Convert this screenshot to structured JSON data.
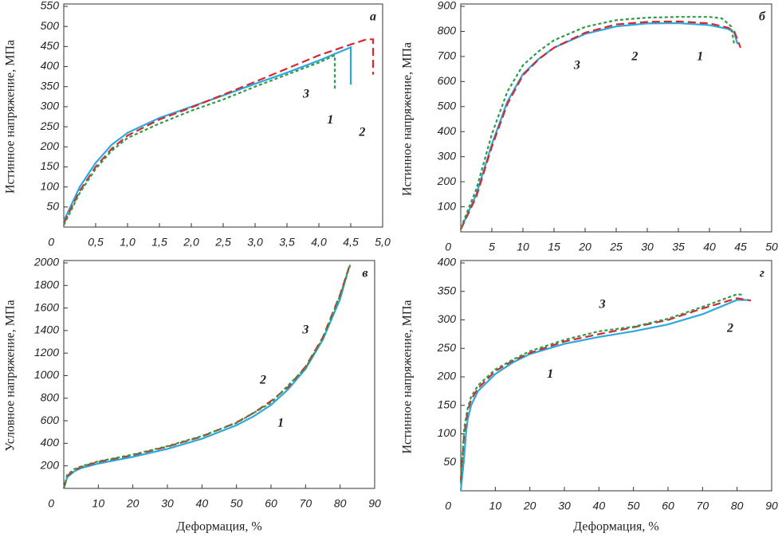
{
  "chart_data": [
    {
      "type": "line",
      "panel_label": "а",
      "y_label": "Истинное напряжение, МПа",
      "xlim": [
        0,
        5
      ],
      "ylim": [
        0,
        550
      ],
      "xticks": [
        0,
        {
          "value": 0.5,
          "label": "0,5"
        },
        {
          "value": 1.0,
          "label": "1,0"
        },
        {
          "value": 1.5,
          "label": "1,5"
        },
        {
          "value": 2.0,
          "label": "2,0"
        },
        {
          "value": 2.5,
          "label": "2,5"
        },
        {
          "value": 3.0,
          "label": "3,0"
        },
        {
          "value": 3.5,
          "label": "3,5"
        },
        {
          "value": 4.0,
          "label": "4,0"
        },
        {
          "value": 4.5,
          "label": "4,5"
        },
        {
          "value": 5.0,
          "label": "5,0"
        }
      ],
      "yticks": [
        50,
        100,
        150,
        200,
        250,
        300,
        350,
        400,
        450,
        500,
        550
      ],
      "series": [
        {
          "name": "1",
          "color": "#29a9e0",
          "dash": "solid",
          "x": [
            0,
            0.25,
            0.5,
            0.75,
            1.0,
            1.5,
            2.0,
            2.5,
            3.0,
            3.5,
            4.0,
            4.5,
            4.5
          ],
          "values": [
            15,
            100,
            160,
            205,
            235,
            272,
            300,
            328,
            357,
            385,
            415,
            448,
            355
          ]
        },
        {
          "name": "2",
          "color": "#d7282f",
          "dash": "dashed",
          "x": [
            0,
            0.25,
            0.5,
            0.75,
            1.0,
            1.5,
            2.0,
            2.5,
            3.0,
            3.5,
            4.0,
            4.5,
            4.75,
            4.85,
            4.85
          ],
          "values": [
            10,
            90,
            150,
            195,
            228,
            268,
            298,
            330,
            362,
            395,
            428,
            455,
            468,
            468,
            380
          ]
        },
        {
          "name": "3",
          "color": "#2e9b48",
          "dash": "dotted",
          "x": [
            0,
            0.25,
            0.5,
            0.75,
            1.0,
            1.5,
            2.0,
            2.5,
            3.0,
            3.5,
            4.0,
            4.25,
            4.25
          ],
          "values": [
            5,
            85,
            145,
            190,
            222,
            258,
            290,
            318,
            350,
            380,
            410,
            428,
            340
          ]
        }
      ]
    },
    {
      "type": "line",
      "panel_label": "б",
      "y_label": "Истинное напряжение, МПа",
      "xlim": [
        0,
        50
      ],
      "ylim": [
        0,
        900
      ],
      "xticks": [
        0,
        5,
        10,
        15,
        20,
        25,
        30,
        35,
        40,
        45,
        50
      ],
      "yticks": [
        100,
        200,
        300,
        400,
        500,
        600,
        700,
        800,
        900
      ],
      "series": [
        {
          "name": "1",
          "color": "#29a9e0",
          "dash": "solid",
          "x": [
            0,
            2.5,
            5,
            7.5,
            10,
            12.5,
            15,
            20,
            25,
            30,
            35,
            40,
            43,
            44,
            44.5
          ],
          "values": [
            10,
            150,
            350,
            520,
            630,
            690,
            735,
            790,
            820,
            832,
            833,
            825,
            810,
            795,
            750
          ]
        },
        {
          "name": "2",
          "color": "#d7282f",
          "dash": "dashed",
          "x": [
            0,
            2.5,
            5,
            7.5,
            10,
            12.5,
            15,
            20,
            25,
            30,
            35,
            40,
            43,
            44,
            45
          ],
          "values": [
            10,
            140,
            340,
            510,
            625,
            688,
            735,
            795,
            828,
            838,
            840,
            832,
            815,
            800,
            735
          ]
        },
        {
          "name": "3",
          "color": "#2e9b48",
          "dash": "dotted",
          "x": [
            0,
            2.5,
            5,
            7.5,
            10,
            12.5,
            15,
            20,
            25,
            30,
            35,
            40,
            42,
            43.5,
            44
          ],
          "values": [
            15,
            170,
            390,
            560,
            665,
            720,
            765,
            818,
            845,
            855,
            858,
            858,
            852,
            820,
            745
          ]
        }
      ]
    },
    {
      "type": "line",
      "panel_label": "в",
      "y_label": "Условное напряжение, МПа",
      "x_label": "Деформация, %",
      "xlim": [
        0,
        90
      ],
      "ylim": [
        0,
        2000
      ],
      "xticks": [
        0,
        10,
        20,
        30,
        40,
        50,
        60,
        70,
        80,
        90
      ],
      "yticks": [
        200,
        400,
        600,
        800,
        1000,
        1200,
        1400,
        1600,
        1800,
        2000
      ],
      "series": [
        {
          "name": "1",
          "color": "#29a9e0",
          "dash": "solid",
          "x": [
            0,
            1,
            3,
            5,
            10,
            20,
            30,
            40,
            50,
            55,
            60,
            65,
            70,
            75,
            80,
            82
          ],
          "values": [
            0,
            100,
            150,
            180,
            220,
            280,
            350,
            440,
            560,
            640,
            740,
            880,
            1060,
            1320,
            1680,
            1900
          ]
        },
        {
          "name": "2",
          "color": "#d7282f",
          "dash": "dashed",
          "x": [
            0,
            1,
            3,
            5,
            10,
            20,
            30,
            40,
            50,
            55,
            60,
            65,
            70,
            75,
            80,
            83
          ],
          "values": [
            0,
            110,
            160,
            190,
            235,
            295,
            370,
            460,
            585,
            670,
            775,
            900,
            1080,
            1340,
            1720,
            2000
          ]
        },
        {
          "name": "3",
          "color": "#2e9b48",
          "dash": "dotted",
          "x": [
            0,
            1,
            3,
            5,
            10,
            20,
            30,
            40,
            50,
            60,
            70,
            75,
            80,
            83
          ],
          "values": [
            0,
            120,
            170,
            195,
            240,
            300,
            375,
            465,
            580,
            760,
            1070,
            1330,
            1710,
            1990
          ]
        }
      ]
    },
    {
      "type": "line",
      "panel_label": "г",
      "y_label": "Истинное напряжение, МПа",
      "x_label": "Деформация, %",
      "xlim": [
        0,
        90
      ],
      "ylim": [
        0,
        400
      ],
      "xticks": [
        0,
        10,
        20,
        30,
        40,
        50,
        60,
        70,
        80,
        90
      ],
      "yticks": [
        50,
        100,
        150,
        200,
        250,
        300,
        350,
        400
      ],
      "series": [
        {
          "name": "1",
          "color": "#29a9e0",
          "dash": "solid",
          "x": [
            0,
            1,
            1.5,
            2,
            3,
            5,
            10,
            15,
            20,
            30,
            40,
            50,
            60,
            70,
            80,
            83
          ],
          "values": [
            0,
            60,
            100,
            125,
            150,
            175,
            205,
            225,
            240,
            258,
            270,
            280,
            292,
            310,
            335,
            335
          ]
        },
        {
          "name": "2",
          "color": "#d7282f",
          "dash": "dashed",
          "x": [
            0,
            1,
            2,
            3,
            5,
            10,
            15,
            20,
            30,
            40,
            50,
            60,
            70,
            80,
            84
          ],
          "values": [
            20,
            100,
            140,
            160,
            180,
            210,
            228,
            242,
            262,
            275,
            287,
            300,
            320,
            338,
            334
          ]
        },
        {
          "name": "3",
          "color": "#2e9b48",
          "dash": "dotted",
          "x": [
            0,
            1,
            2,
            3,
            5,
            10,
            15,
            20,
            30,
            40,
            50,
            60,
            70,
            80,
            82
          ],
          "values": [
            15,
            110,
            145,
            165,
            185,
            213,
            230,
            245,
            265,
            280,
            288,
            302,
            323,
            345,
            344
          ]
        }
      ]
    }
  ]
}
